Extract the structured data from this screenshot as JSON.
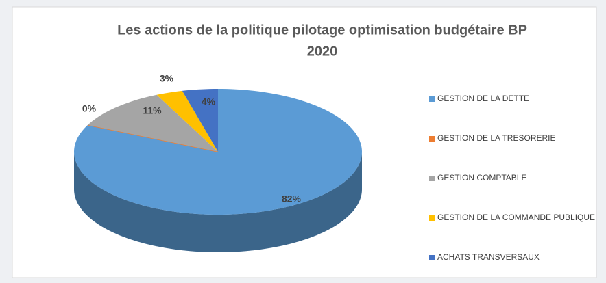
{
  "chart_data": {
    "type": "pie3d",
    "title": [
      "Les actions de la politique pilotage optimisation budgétaire BP",
      "2020"
    ],
    "categories": [
      "GESTION DE LA DETTE",
      "GESTION DE LA TRESORERIE",
      "GESTION COMPTABLE",
      "GESTION DE LA COMMANDE PUBLIQUE",
      "ACHATS TRANSVERSAUX"
    ],
    "values": [
      82,
      0,
      11,
      3,
      4
    ],
    "value_labels": [
      "82%",
      "0%",
      "11%",
      "3%",
      "4%"
    ],
    "colors": [
      "#5b9bd5",
      "#ed7d31",
      "#a5a5a5",
      "#ffc000",
      "#4472c4"
    ],
    "legend": "right"
  }
}
